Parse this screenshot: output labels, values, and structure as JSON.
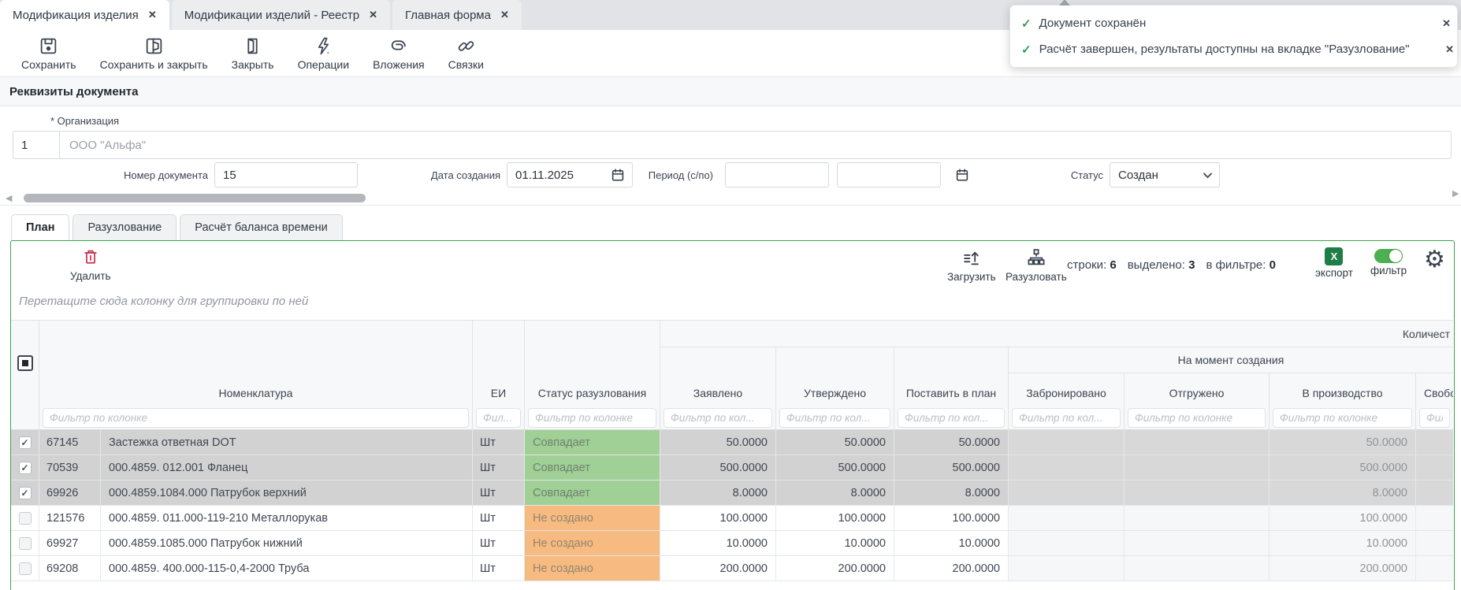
{
  "colors": {
    "panel_border": "#3fa14f",
    "status_match_bg": "#a0d096",
    "status_missing_bg": "#f7bb81",
    "selected_row_bg": "#d2d2d2",
    "delete_red": "#c9334f",
    "export_green": "#1e7e45",
    "toggle_green": "#4caf50",
    "toast_check_green": "#2f9e52"
  },
  "window_tabs": [
    {
      "label": "Модификация изделия",
      "close": "✕"
    },
    {
      "label": "Модификации изделий - Реестр",
      "close": "✕"
    },
    {
      "label": "Главная форма",
      "close": "✕"
    }
  ],
  "toasts": {
    "items": [
      {
        "text": "Документ сохранён",
        "close": "✕"
      },
      {
        "text": "Расчёт завершен, результаты доступны на вкладке \"Разузлование\"",
        "close": "✕"
      }
    ]
  },
  "toolbar": {
    "save": "Сохранить",
    "save_close": "Сохранить и закрыть",
    "close": "Закрыть",
    "operations": "Операции",
    "attachments": "Вложения",
    "links": "Связки"
  },
  "document_form": {
    "section_title": "Реквизиты документа",
    "org_label": "* Организация",
    "org_code": "1",
    "org_name": "ООО \"Альфа\"",
    "number_label": "Номер документа",
    "number_value": "15",
    "date_label": "Дата создания",
    "date_value": "01.11.2025",
    "period_label": "Период (с/по)",
    "period_from": "",
    "period_to": "",
    "status_label": "Статус",
    "status_value": "Создан"
  },
  "inner_tabs": {
    "plan": "План",
    "explosion": "Разузлование",
    "time_balance": "Расчёт баланса времени"
  },
  "grid": {
    "delete_label": "Удалить",
    "load_label": "Загрузить",
    "explode_label": "Разузловать",
    "counters": {
      "rows_label": "строки:",
      "rows_value": "6",
      "selected_label": "выделено:",
      "selected_value": "3",
      "filtered_label": "в фильтре:",
      "filtered_value": "0"
    },
    "export_label": "экспорт",
    "export_letter": "X",
    "filter_label": "фильтр",
    "group_hint": "Перетащите сюда колонку для группировки по ней",
    "quantity_group": "Количест",
    "creation_group": "На момент создания",
    "columns": {
      "nomenclature": {
        "label": "Номенклатура",
        "filter": "Фильтр по колонке"
      },
      "unit": {
        "label": "ЕИ",
        "filter": "Фил..."
      },
      "status": {
        "label": "Статус разузлования",
        "filter": "Фильтр по колонке"
      },
      "declared": {
        "label": "Заявлено",
        "filter": "Фильтр по кол..."
      },
      "approved": {
        "label": "Утверждено",
        "filter": "Фильтр по кол..."
      },
      "to_plan": {
        "label": "Поставить в план",
        "filter": "Фильтр по кол..."
      },
      "reserved": {
        "label": "Забронировано",
        "filter": "Фильтр по кол..."
      },
      "shipped": {
        "label": "Отгружено",
        "filter": "Фильтр по колонке"
      },
      "production": {
        "label": "В производство",
        "filter": "Фильтр по колонке"
      },
      "free": {
        "label": "Свобод",
        "filter": "Фильтр по колонке"
      }
    },
    "rows": [
      {
        "checked": true,
        "id": "67145",
        "name": "Застежка ответная DOT",
        "unit": "Шт",
        "status": "Совпадает",
        "status_kind": "match",
        "declared": "50.0000",
        "approved": "50.0000",
        "to_plan": "50.0000",
        "reserved": "",
        "shipped": "",
        "production": "50.0000",
        "free": ""
      },
      {
        "checked": true,
        "id": "70539",
        "name": "000.4859. 012.001 Фланец",
        "unit": "Шт",
        "status": "Совпадает",
        "status_kind": "match",
        "declared": "500.0000",
        "approved": "500.0000",
        "to_plan": "500.0000",
        "reserved": "",
        "shipped": "",
        "production": "500.0000",
        "free": ""
      },
      {
        "checked": true,
        "id": "69926",
        "name": "000.4859.1084.000 Патрубок верхний",
        "unit": "Шт",
        "status": "Совпадает",
        "status_kind": "match",
        "declared": "8.0000",
        "approved": "8.0000",
        "to_plan": "8.0000",
        "reserved": "",
        "shipped": "",
        "production": "8.0000",
        "free": ""
      },
      {
        "checked": false,
        "id": "121576",
        "name": "000.4859. 011.000-119-210 Металлорукав",
        "unit": "Шт",
        "status": "Не создано",
        "status_kind": "missing",
        "declared": "100.0000",
        "approved": "100.0000",
        "to_plan": "100.0000",
        "reserved": "",
        "shipped": "",
        "production": "100.0000",
        "free": ""
      },
      {
        "checked": false,
        "id": "69927",
        "name": "000.4859.1085.000 Патрубок нижний",
        "unit": "Шт",
        "status": "Не создано",
        "status_kind": "missing",
        "declared": "10.0000",
        "approved": "10.0000",
        "to_plan": "10.0000",
        "reserved": "",
        "shipped": "",
        "production": "10.0000",
        "free": ""
      },
      {
        "checked": false,
        "id": "69208",
        "name": "000.4859. 400.000-115-0,4-2000 Труба",
        "unit": "Шт",
        "status": "Не создано",
        "status_kind": "missing",
        "declared": "200.0000",
        "approved": "200.0000",
        "to_plan": "200.0000",
        "reserved": "",
        "shipped": "",
        "production": "200.0000",
        "free": ""
      }
    ]
  }
}
